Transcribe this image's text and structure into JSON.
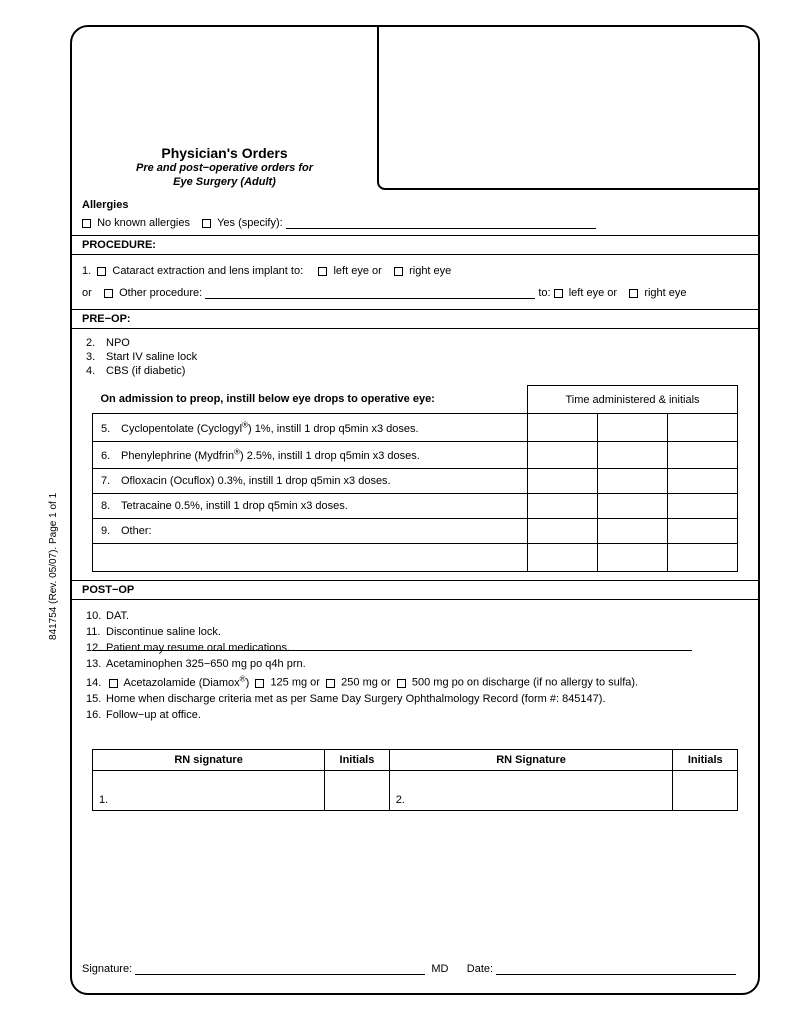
{
  "side_label": "841754   (Rev. 05/07). Page 1 of 1",
  "title": {
    "main": "Physician's Orders",
    "sub1": "Pre and post−operative orders for",
    "sub2": "Eye Surgery (Adult)"
  },
  "allergies": {
    "heading": "Allergies",
    "opt_none": "No known allergies",
    "opt_yes": "Yes (specify):"
  },
  "procedure": {
    "heading": "PROCEDURE:",
    "item1_prefix": "1.",
    "item1_text": "Cataract extraction and lens implant to:",
    "left_eye": "left eye or",
    "right_eye": "right eye",
    "or_text": "or",
    "other_label": "Other procedure:",
    "to_text": "to:"
  },
  "preop": {
    "heading": "PRE−OP:",
    "items": [
      {
        "n": "2.",
        "t": "NPO"
      },
      {
        "n": "3.",
        "t": "Start IV saline lock"
      },
      {
        "n": "4.",
        "t": "CBS (if diabetic)"
      }
    ],
    "instruct": "On admission to preop, instill below eye drops to operative eye:",
    "time_header": "Time administered & initials",
    "meds": [
      {
        "n": "5.",
        "t": "Cyclopentolate (Cyclogyl®) 1%, instill 1 drop q5min x3 doses."
      },
      {
        "n": "6.",
        "t": "Phenylephrine (Mydfrin®) 2.5%, instill 1 drop q5min x3 doses."
      },
      {
        "n": "7.",
        "t": "Ofloxacin (Ocuflox) 0.3%, instill 1 drop q5min x3 doses."
      },
      {
        "n": "8.",
        "t": "Tetracaine 0.5%, instill 1 drop q5min x3 doses."
      },
      {
        "n": "9.",
        "t": "Other:"
      }
    ]
  },
  "postop": {
    "heading": "POST−OP",
    "items": [
      {
        "n": "10.",
        "t": "DAT."
      },
      {
        "n": "11.",
        "t": "Discontinue saline lock."
      },
      {
        "n": "12.",
        "t": "Patient may resume oral medications."
      },
      {
        "n": "13.",
        "t": "Acetaminophen 325−650 mg po q4h prn."
      }
    ],
    "item14_n": "14.",
    "item14_drug": "Acetazolamide (Diamox®)",
    "item14_d1": "125 mg or",
    "item14_d2": "250 mg or",
    "item14_d3": "500 mg po on discharge (if no allergy to sulfa).",
    "items2": [
      {
        "n": "15.",
        "t": "Home when discharge criteria met as per Same Day Surgery Ophthalmology Record (form #: 845147)."
      },
      {
        "n": "16.",
        "t": "Follow−up at office."
      }
    ]
  },
  "sig_table": {
    "col_rn": "RN signature",
    "col_rn2": "RN Signature",
    "col_init": "Initials",
    "r1": "1.",
    "r2": "2."
  },
  "footer": {
    "sig_label": "Signature:",
    "md": "MD",
    "date": "Date:"
  }
}
